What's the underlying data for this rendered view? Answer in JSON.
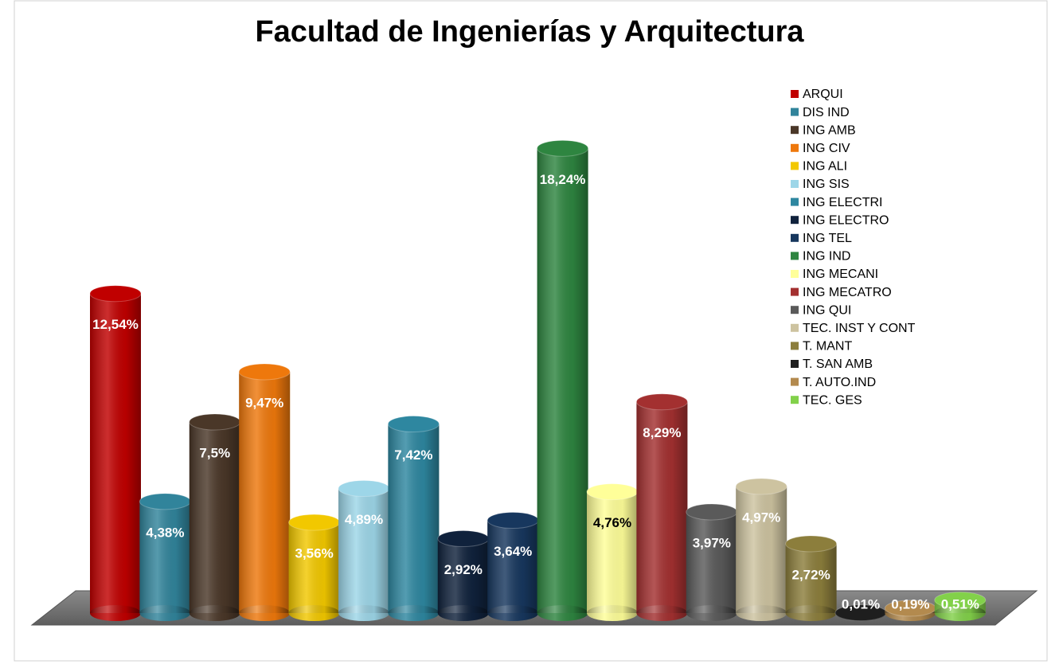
{
  "chart_data": {
    "type": "bar",
    "title": "Facultad de Ingenierías y Arquitectura",
    "categories": [
      "ARQUI",
      "DIS IND",
      "ING AMB",
      "ING CIV",
      "ING ALI",
      "ING SIS",
      "ING ELECTRI",
      "ING ELECTRO",
      "ING TEL",
      "ING IND",
      "ING MECANI",
      "ING MECATRO",
      "ING QUI",
      "TEC. INST Y CONT",
      "T. MANT",
      "T. SAN AMB",
      "T. AUTO.IND",
      "TEC. GES"
    ],
    "values": [
      12.54,
      4.38,
      7.5,
      9.47,
      3.56,
      4.89,
      7.42,
      2.92,
      3.64,
      18.24,
      4.76,
      8.29,
      3.97,
      4.97,
      2.72,
      0.01,
      0.19,
      0.51
    ],
    "value_labels": [
      "12,54%",
      "4,38%",
      "7,5%",
      "9,47%",
      "3,56%",
      "4,89%",
      "7,42%",
      "2,92%",
      "3,64%",
      "18,24%",
      "4,76%",
      "8,29%",
      "3,97%",
      "4,97%",
      "2,72%",
      "0,01%",
      "0,19%",
      "0,51%"
    ],
    "colors": [
      "#c00000",
      "#31849b",
      "#4a3728",
      "#ee780c",
      "#f2c800",
      "#9dd6e8",
      "#2e87a0",
      "#10223c",
      "#17375e",
      "#2e8540",
      "#ffff99",
      "#a33030",
      "#5a5a5a",
      "#cdc3a0",
      "#8c7e3c",
      "#1e1e1e",
      "#b38a4e",
      "#82d14a"
    ],
    "legend": "right"
  }
}
